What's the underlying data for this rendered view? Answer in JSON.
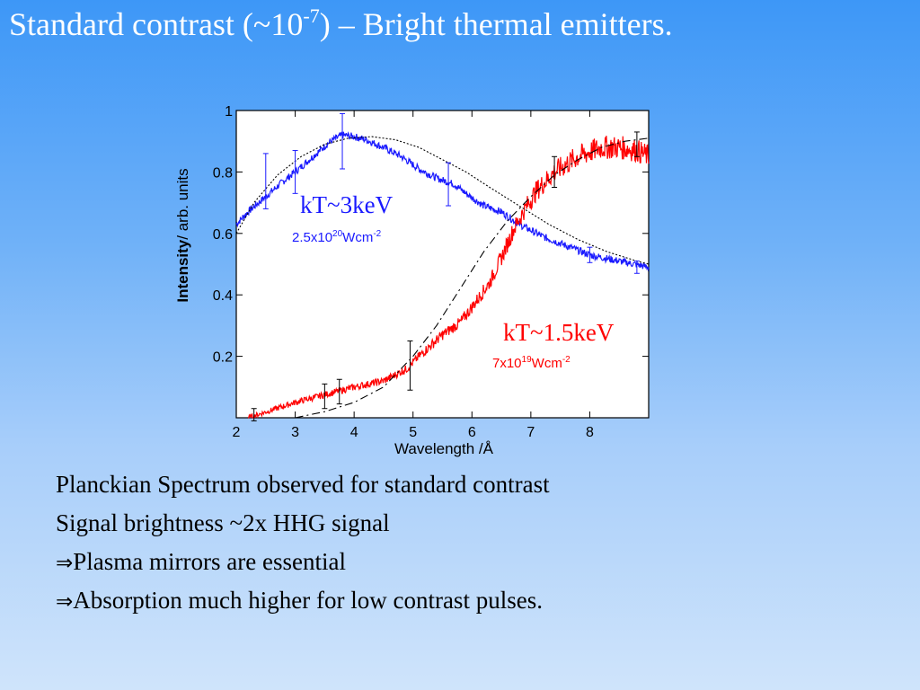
{
  "slide": {
    "title_main": "Standard contrast (~10",
    "title_sup": "-7",
    "title_rest": ") – Bright thermal emitters.",
    "bullets": [
      {
        "arrow": "",
        "text": "Planckian Spectrum observed for standard contrast"
      },
      {
        "arrow": "",
        "text": "Signal brightness ~2x HHG signal"
      },
      {
        "arrow": "⇒",
        "text": "Plasma mirrors are essential"
      },
      {
        "arrow": "⇒",
        "text": "Absorption much higher for low contrast pulses."
      }
    ]
  },
  "chart_data": {
    "type": "line",
    "xlabel": "Wavelength",
    "xlabel_unit": " /Å",
    "ylabel": "Intensity",
    "ylabel_unit": "/ arb. units",
    "xlim": [
      2,
      9
    ],
    "ylim": [
      0,
      1
    ],
    "x_ticks": [
      2,
      3,
      4,
      5,
      6,
      7,
      8
    ],
    "y_ticks": [
      0.2,
      0.4,
      0.6,
      0.8,
      1
    ],
    "y_tick_labels": [
      "0.2",
      "0.4",
      "0.6",
      "0.8",
      "1"
    ],
    "grid": false,
    "series": [
      {
        "color": "#1a1aff",
        "style": "noisy",
        "x": [
          2.0,
          2.2,
          2.5,
          2.8,
          3.0,
          3.3,
          3.6,
          3.8,
          4.0,
          4.2,
          4.5,
          4.8,
          5.1,
          5.4,
          5.7,
          5.9,
          6.2,
          6.5,
          6.8,
          7.2,
          7.6,
          8.0,
          8.5,
          9.0
        ],
        "y": [
          0.63,
          0.67,
          0.72,
          0.77,
          0.8,
          0.85,
          0.9,
          0.92,
          0.915,
          0.905,
          0.88,
          0.85,
          0.81,
          0.78,
          0.76,
          0.73,
          0.69,
          0.67,
          0.63,
          0.59,
          0.56,
          0.53,
          0.51,
          0.49
        ],
        "error_bars": [
          {
            "x": 2.5,
            "y": 0.77,
            "err": 0.09
          },
          {
            "x": 3.0,
            "y": 0.8,
            "err": 0.07
          },
          {
            "x": 3.8,
            "y": 0.9,
            "err": 0.09
          },
          {
            "x": 5.6,
            "y": 0.76,
            "err": 0.07
          },
          {
            "x": 8.0,
            "y": 0.53,
            "err": 0.025
          },
          {
            "x": 8.8,
            "y": 0.49,
            "err": 0.02
          }
        ],
        "label_main": "kT~3keV",
        "label_density": "2.5x10",
        "label_density_exp": "20",
        "label_density_unit": "Wcm",
        "label_density_unit_exp": "-2"
      },
      {
        "color": "#ff0000",
        "style": "noisy",
        "x": [
          2.2,
          2.6,
          3.0,
          3.5,
          4.0,
          4.5,
          4.9,
          5.1,
          5.5,
          5.8,
          6.0,
          6.3,
          6.5,
          6.7,
          6.9,
          7.1,
          7.4,
          7.8,
          8.2,
          8.5,
          8.8,
          9.0
        ],
        "y": [
          0.0,
          0.025,
          0.05,
          0.075,
          0.1,
          0.12,
          0.16,
          0.2,
          0.27,
          0.31,
          0.36,
          0.44,
          0.52,
          0.61,
          0.68,
          0.74,
          0.8,
          0.85,
          0.88,
          0.88,
          0.87,
          0.85
        ],
        "error_bars": [
          {
            "x": 2.3,
            "y": 0.01,
            "err": 0.02
          },
          {
            "x": 3.5,
            "y": 0.07,
            "err": 0.04
          },
          {
            "x": 3.75,
            "y": 0.085,
            "err": 0.04
          },
          {
            "x": 4.95,
            "y": 0.17,
            "err": 0.08
          },
          {
            "x": 7.4,
            "y": 0.8,
            "err": 0.05
          },
          {
            "x": 8.8,
            "y": 0.89,
            "err": 0.04
          }
        ],
        "label_main": "kT~1.5keV",
        "label_density": "7x10",
        "label_density_exp": "19",
        "label_density_unit": "Wcm",
        "label_density_unit_exp": "-2"
      },
      {
        "color": "#000000",
        "style": "dotted",
        "x": [
          2.0,
          2.3,
          2.7,
          3.1,
          3.5,
          3.9,
          4.3,
          4.7,
          5.1,
          5.5,
          5.9,
          6.3,
          6.8,
          7.3,
          7.8,
          8.3,
          8.8,
          9.0
        ],
        "y": [
          0.6,
          0.7,
          0.79,
          0.85,
          0.89,
          0.91,
          0.915,
          0.905,
          0.88,
          0.84,
          0.8,
          0.75,
          0.69,
          0.63,
          0.58,
          0.54,
          0.51,
          0.5
        ]
      },
      {
        "color": "#000000",
        "style": "dashed",
        "x": [
          3.0,
          3.5,
          4.0,
          4.5,
          5.0,
          5.4,
          5.8,
          6.2,
          6.6,
          7.0,
          7.4,
          7.8,
          8.2,
          8.6,
          9.0
        ],
        "y": [
          0.0,
          0.02,
          0.05,
          0.1,
          0.2,
          0.3,
          0.42,
          0.54,
          0.64,
          0.72,
          0.79,
          0.84,
          0.88,
          0.9,
          0.91
        ]
      }
    ]
  }
}
